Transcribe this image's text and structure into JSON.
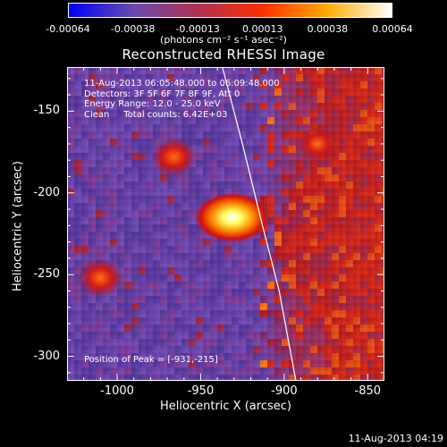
{
  "colorbar": {
    "tick_labels": [
      "-0.00064",
      "-0.00038",
      "-0.00013",
      "0.00013",
      "0.00038",
      "0.00064"
    ],
    "units": "(photons cm⁻² s⁻¹ asec⁻²)",
    "colors": [
      "#0000ff",
      "#6a4ab0",
      "#b03050",
      "#ff3000",
      "#ffaa00",
      "#ffffff"
    ]
  },
  "title": "Reconstructed RHESSI Image",
  "annotations": [
    "11-Aug-2013 06:05:48.000 to 06:09:48.000",
    "Detectors: 3F 5F 6F 7F 8F 9F, Att 0",
    "Energy Range: 12.0 - 25.0 keV",
    "Clean     Total counts: 6.42E+03"
  ],
  "peak_label": "Position of Peak = [-931,-215]",
  "footer": "11-Aug-2013 04:19",
  "chart_data": {
    "type": "heatmap",
    "title": "Reconstructed RHESSI Image",
    "xlabel": "Heliocentric X (arcsec)",
    "ylabel": "Heliocentric Y (arcsec)",
    "xlim": [
      -1030,
      -840
    ],
    "ylim": [
      -315,
      -123
    ],
    "x_ticks": [
      -1000,
      -950,
      -900,
      -850
    ],
    "y_ticks": [
      -300,
      -250,
      -200,
      -150
    ],
    "x_tick_labels": [
      "-1000",
      "-950",
      "-900",
      "-850"
    ],
    "y_tick_labels": [
      "-300",
      "-250",
      "-200",
      "-150"
    ],
    "color_range": [
      -0.00064,
      0.00064
    ],
    "peak_position": [
      -931,
      -215
    ],
    "sources": [
      {
        "x": -931,
        "y": -215,
        "intensity": 1.0
      },
      {
        "x": -966,
        "y": -178,
        "intensity": 0.45
      },
      {
        "x": -1010,
        "y": -252,
        "intensity": 0.45
      },
      {
        "x": -880,
        "y": -170,
        "intensity": 0.4
      }
    ],
    "limb_curve": [
      [
        -937,
        -123
      ],
      [
        -925,
        -170
      ],
      [
        -913,
        -220
      ],
      [
        -903,
        -260
      ],
      [
        -893,
        -315
      ]
    ]
  }
}
